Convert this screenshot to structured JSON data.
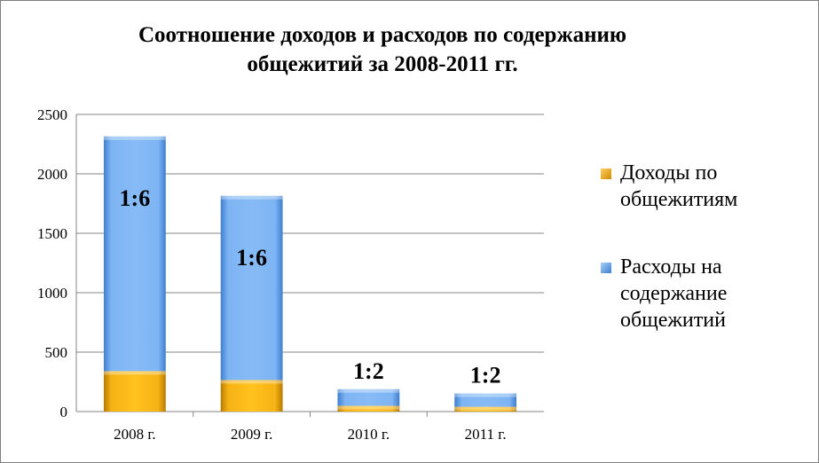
{
  "chart_data": {
    "type": "bar",
    "stacked": true,
    "title_lines": [
      "Соотношение доходов и расходов по содержанию",
      "общежитий за 2008-2011 гг."
    ],
    "categories": [
      "2008 г.",
      "2009 г.",
      "2010 г.",
      "2011 г."
    ],
    "series": [
      {
        "name_lines": [
          "Доходы по",
          "общежитиям"
        ],
        "color": "#F5A800",
        "values": [
          340,
          265,
          48,
          40
        ]
      },
      {
        "name_lines": [
          "Расходы на",
          "содержание",
          "общежитий"
        ],
        "color": "#7BB2F2",
        "values": [
          1975,
          1550,
          140,
          112
        ]
      }
    ],
    "annotations": [
      "1:6",
      "1:6",
      "1:2",
      "1:2"
    ],
    "yticks": [
      0,
      500,
      1000,
      1500,
      2000,
      2500
    ],
    "ylim": [
      0,
      2500
    ],
    "grid": true,
    "legend_position": "right"
  }
}
